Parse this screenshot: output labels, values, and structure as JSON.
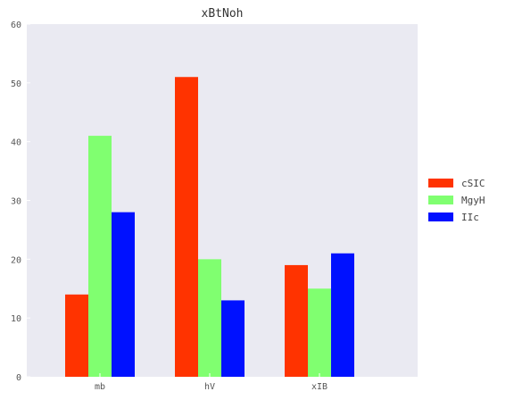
{
  "chart_data": {
    "type": "bar",
    "title": "xBtNoh",
    "xlabel": "",
    "ylabel": "",
    "categories": [
      "mb",
      "hV",
      "xIB"
    ],
    "series": [
      {
        "name": "cSIC",
        "values": [
          14,
          51,
          19
        ]
      },
      {
        "name": "MgyH",
        "values": [
          41,
          20,
          15
        ]
      },
      {
        "name": "IIc",
        "values": [
          28,
          13,
          21
        ]
      }
    ],
    "ylim": [
      0,
      60
    ],
    "yticks": [
      0,
      10,
      20,
      30,
      40,
      50,
      60
    ],
    "grid": false,
    "legend_position": "right",
    "colors": {
      "plot_background": "#eaeaf2",
      "series": [
        "#ff3300",
        "#80ff70",
        "#0011ff"
      ]
    }
  }
}
